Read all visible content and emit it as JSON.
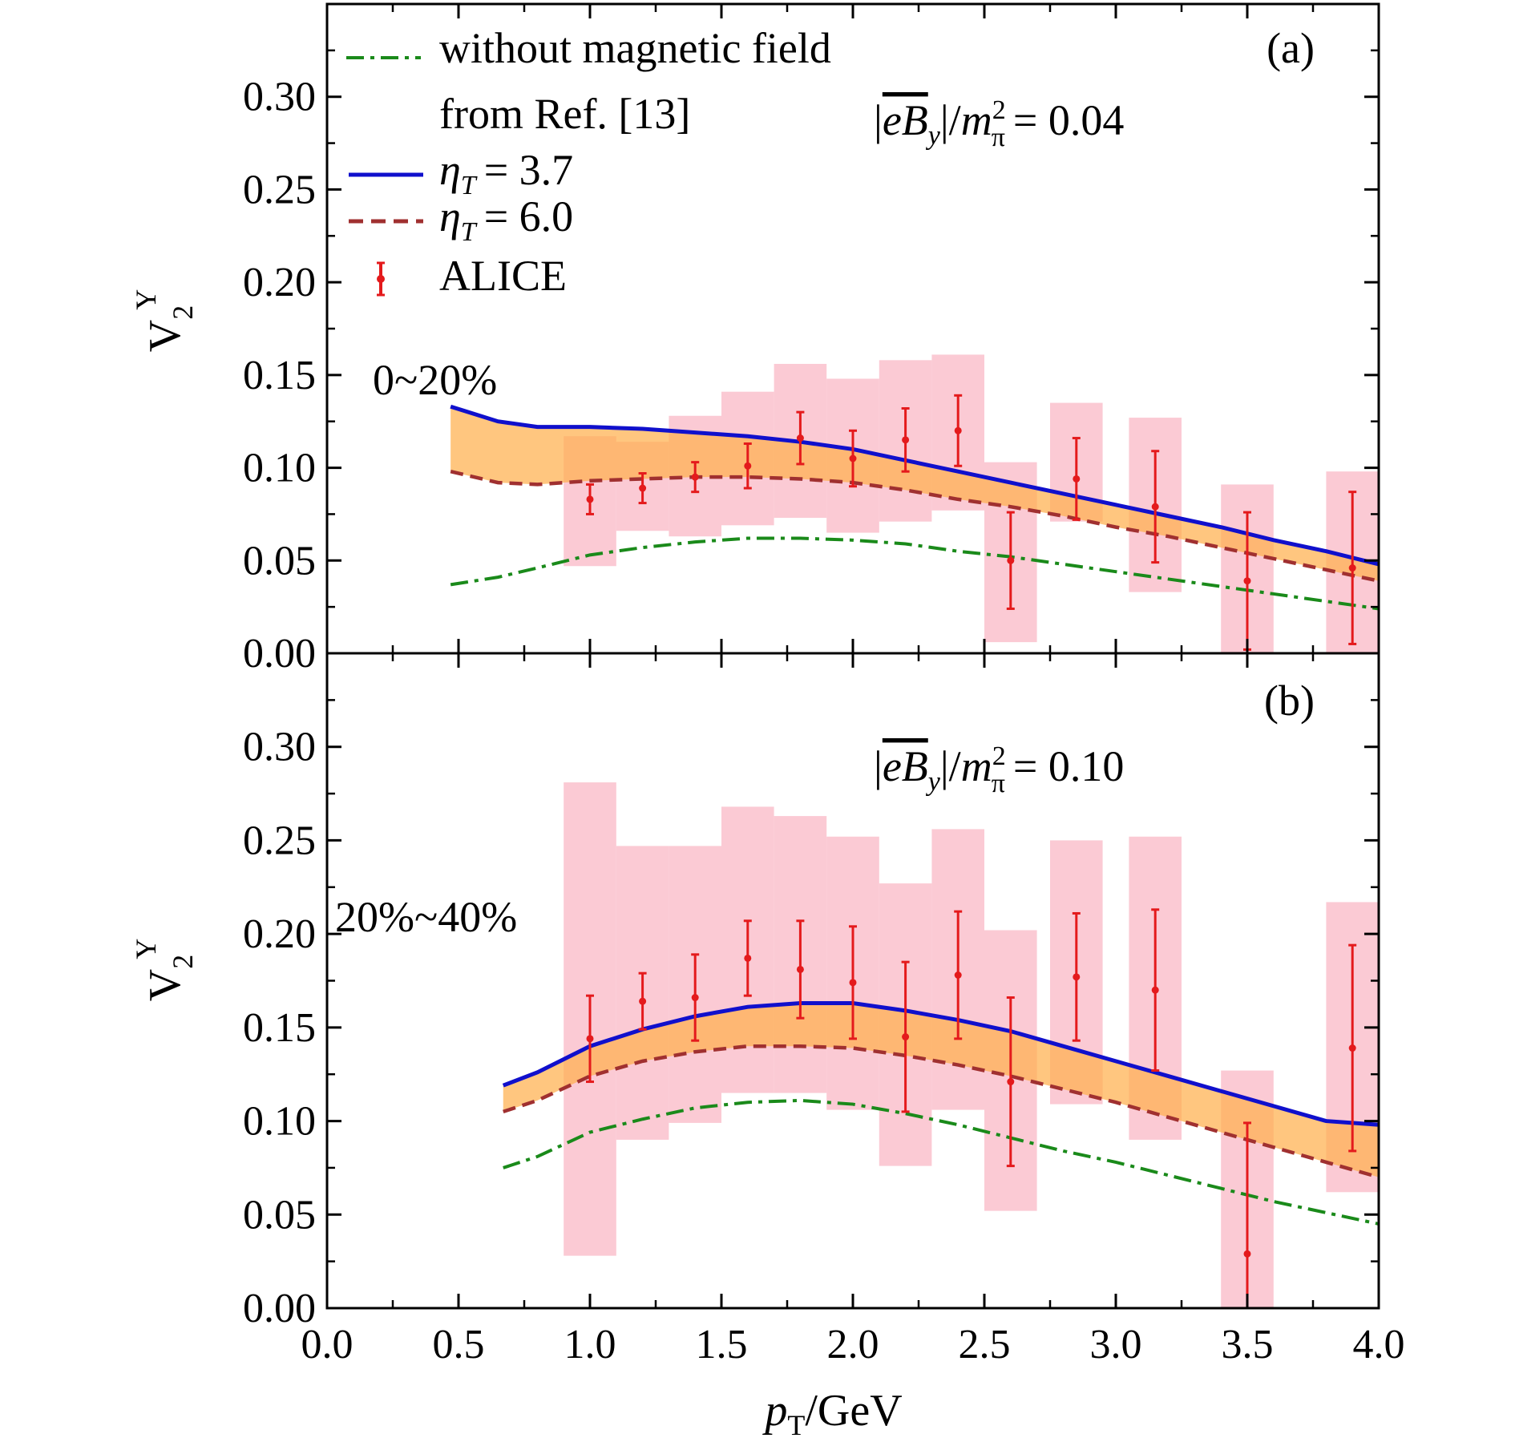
{
  "xlabel": "p_T/GeV",
  "ylabel": "V_2^Y",
  "legend": {
    "no_field": "without magnetic field",
    "no_field_line2": "from Ref. [13]",
    "eta37": "= 3.7",
    "eta60": "= 6.0",
    "alice": "ALICE"
  },
  "colors": {
    "no_field": "#1a8a1a",
    "eta37": "#1010cc",
    "eta60": "#a03030",
    "band": "#ffb04d",
    "alice": "#e41a1c",
    "sys": "#f9b8c6"
  },
  "x_ticks": [
    "0.0",
    "0.5",
    "1.0",
    "1.5",
    "2.0",
    "2.5",
    "3.0",
    "3.5",
    "4.0"
  ],
  "y_ticks": [
    "0.00",
    "0.05",
    "0.10",
    "0.15",
    "0.20",
    "0.25",
    "0.30"
  ],
  "chart_data": [
    {
      "type": "line",
      "panel": "(a)",
      "centrality": "0~20%",
      "field_value": "= 0.04",
      "xlim": [
        0,
        4.0
      ],
      "ylim": [
        0,
        0.35
      ],
      "series": [
        {
          "key": "no_field",
          "name": "without magnetic field from Ref. [13]",
          "x": [
            0.47,
            0.65,
            0.8,
            1.0,
            1.2,
            1.4,
            1.6,
            1.8,
            2.0,
            2.2,
            2.4,
            2.6,
            2.8,
            3.0,
            3.2,
            3.4,
            3.6,
            3.8,
            4.0
          ],
          "y": [
            0.037,
            0.041,
            0.046,
            0.053,
            0.057,
            0.06,
            0.062,
            0.062,
            0.061,
            0.059,
            0.055,
            0.052,
            0.048,
            0.044,
            0.04,
            0.036,
            0.032,
            0.028,
            0.024
          ]
        },
        {
          "key": "eta37",
          "name": "eta_T = 3.7",
          "x": [
            0.47,
            0.65,
            0.8,
            1.0,
            1.2,
            1.4,
            1.6,
            1.8,
            2.0,
            2.2,
            2.4,
            2.6,
            2.8,
            3.0,
            3.2,
            3.4,
            3.6,
            3.8,
            4.0
          ],
          "y": [
            0.133,
            0.125,
            0.122,
            0.122,
            0.121,
            0.119,
            0.117,
            0.114,
            0.11,
            0.104,
            0.098,
            0.092,
            0.086,
            0.08,
            0.074,
            0.068,
            0.061,
            0.055,
            0.048
          ]
        },
        {
          "key": "eta60",
          "name": "eta_T = 6.0",
          "x": [
            0.47,
            0.65,
            0.8,
            1.0,
            1.2,
            1.4,
            1.6,
            1.8,
            2.0,
            2.2,
            2.4,
            2.6,
            2.8,
            3.0,
            3.2,
            3.4,
            3.6,
            3.8,
            4.0
          ],
          "y": [
            0.098,
            0.092,
            0.091,
            0.093,
            0.094,
            0.095,
            0.095,
            0.094,
            0.092,
            0.088,
            0.083,
            0.079,
            0.074,
            0.068,
            0.063,
            0.057,
            0.051,
            0.045,
            0.039
          ]
        }
      ],
      "alice": {
        "x": [
          1.0,
          1.2,
          1.4,
          1.6,
          1.8,
          2.0,
          2.2,
          2.4,
          2.6,
          2.85,
          3.15,
          3.5,
          3.9
        ],
        "y": [
          0.083,
          0.089,
          0.095,
          0.101,
          0.116,
          0.105,
          0.115,
          0.12,
          0.05,
          0.094,
          0.079,
          0.039,
          0.046
        ],
        "err": [
          0.008,
          0.008,
          0.008,
          0.012,
          0.014,
          0.015,
          0.017,
          0.019,
          0.026,
          0.022,
          0.03,
          0.037,
          0.041
        ],
        "sys_low": [
          0.047,
          0.066,
          0.063,
          0.069,
          0.073,
          0.065,
          0.071,
          0.077,
          0.006,
          0.071,
          0.033,
          0.0,
          0.0
        ],
        "sys_high": [
          0.117,
          0.114,
          0.128,
          0.141,
          0.156,
          0.148,
          0.158,
          0.161,
          0.103,
          0.135,
          0.127,
          0.091,
          0.098
        ],
        "sys_x0": [
          0.9,
          1.1,
          1.3,
          1.5,
          1.7,
          1.9,
          2.1,
          2.3,
          2.5,
          2.75,
          3.05,
          3.4,
          3.8
        ],
        "sys_x1": [
          1.1,
          1.3,
          1.5,
          1.7,
          1.9,
          2.1,
          2.3,
          2.5,
          2.7,
          2.95,
          3.25,
          3.6,
          4.0
        ]
      }
    },
    {
      "type": "line",
      "panel": "(b)",
      "centrality": "20%~40%",
      "field_value": "= 0.10",
      "xlim": [
        0,
        4.0
      ],
      "ylim": [
        0,
        0.35
      ],
      "series": [
        {
          "key": "no_field",
          "name": "without magnetic field from Ref. [13]",
          "x": [
            0.67,
            0.8,
            1.0,
            1.2,
            1.4,
            1.6,
            1.8,
            2.0,
            2.2,
            2.4,
            2.6,
            2.8,
            3.0,
            3.2,
            3.4,
            3.6,
            3.8,
            4.0
          ],
          "y": [
            0.075,
            0.081,
            0.094,
            0.101,
            0.107,
            0.11,
            0.111,
            0.109,
            0.104,
            0.098,
            0.091,
            0.084,
            0.078,
            0.071,
            0.064,
            0.057,
            0.051,
            0.045
          ]
        },
        {
          "key": "eta37",
          "name": "eta_T = 3.7",
          "x": [
            0.67,
            0.8,
            1.0,
            1.2,
            1.4,
            1.6,
            1.8,
            2.0,
            2.2,
            2.4,
            2.6,
            2.8,
            3.0,
            3.2,
            3.4,
            3.6,
            3.8,
            4.0
          ],
          "y": [
            0.119,
            0.126,
            0.14,
            0.149,
            0.156,
            0.161,
            0.163,
            0.163,
            0.159,
            0.154,
            0.148,
            0.14,
            0.132,
            0.124,
            0.116,
            0.108,
            0.1,
            0.098
          ]
        },
        {
          "key": "eta60",
          "name": "eta_T = 6.0",
          "x": [
            0.67,
            0.8,
            1.0,
            1.2,
            1.4,
            1.6,
            1.8,
            2.0,
            2.2,
            2.4,
            2.6,
            2.8,
            3.0,
            3.2,
            3.4,
            3.6,
            3.8,
            4.0
          ],
          "y": [
            0.105,
            0.111,
            0.124,
            0.132,
            0.137,
            0.14,
            0.14,
            0.139,
            0.135,
            0.13,
            0.124,
            0.117,
            0.11,
            0.102,
            0.094,
            0.086,
            0.078,
            0.07
          ]
        }
      ],
      "alice": {
        "x": [
          1.0,
          1.2,
          1.4,
          1.6,
          1.8,
          2.0,
          2.2,
          2.4,
          2.6,
          2.85,
          3.15,
          3.5,
          3.9
        ],
        "y": [
          0.144,
          0.164,
          0.166,
          0.187,
          0.181,
          0.174,
          0.145,
          0.178,
          0.121,
          0.177,
          0.17,
          0.029,
          0.139
        ],
        "err": [
          0.023,
          0.015,
          0.023,
          0.02,
          0.026,
          0.03,
          0.04,
          0.034,
          0.045,
          0.034,
          0.043,
          0.07,
          0.055
        ],
        "sys_low": [
          0.028,
          0.09,
          0.099,
          0.115,
          0.115,
          0.106,
          0.076,
          0.106,
          0.052,
          0.109,
          0.09,
          0.0,
          0.062
        ],
        "sys_high": [
          0.281,
          0.247,
          0.247,
          0.268,
          0.263,
          0.252,
          0.227,
          0.256,
          0.202,
          0.25,
          0.252,
          0.127,
          0.217
        ],
        "sys_x0": [
          0.9,
          1.1,
          1.3,
          1.5,
          1.7,
          1.9,
          2.1,
          2.3,
          2.5,
          2.75,
          3.05,
          3.4,
          3.8
        ],
        "sys_x1": [
          1.1,
          1.3,
          1.5,
          1.7,
          1.9,
          2.1,
          2.3,
          2.5,
          2.7,
          2.95,
          3.25,
          3.6,
          4.0
        ]
      }
    }
  ]
}
